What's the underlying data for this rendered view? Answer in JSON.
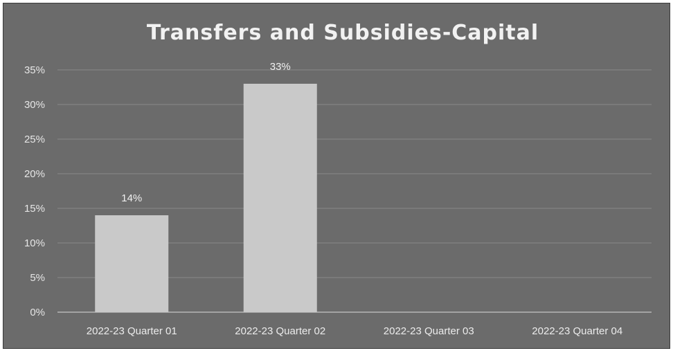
{
  "chart_data": {
    "type": "bar",
    "title": "Transfers and Subsidies-Capital",
    "categories": [
      "2022-23 Quarter 01",
      "2022-23 Quarter 02",
      "2022-23 Quarter 03",
      "2022-23 Quarter 04"
    ],
    "values": [
      14,
      33,
      null,
      null
    ],
    "data_labels": [
      "14%",
      "33%",
      "",
      ""
    ],
    "y_ticks": [
      "0%",
      "5%",
      "10%",
      "15%",
      "20%",
      "25%",
      "30%",
      "35%"
    ],
    "ylim": [
      0,
      35
    ],
    "grid": true,
    "legend": "none",
    "colors": {
      "background": "#6b6b6b",
      "bar": "#c9c9c9",
      "text": "#f2f2f2"
    }
  }
}
